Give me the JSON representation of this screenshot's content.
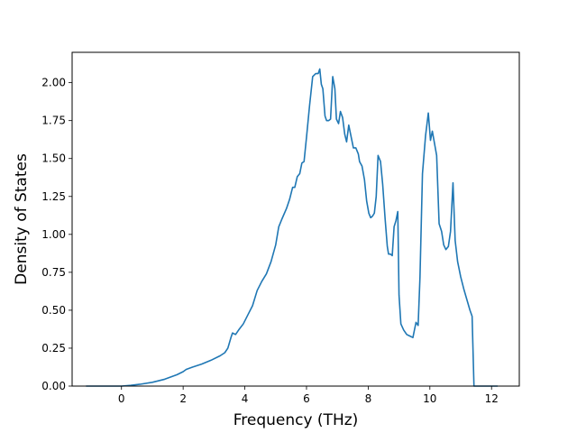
{
  "chart_data": {
    "type": "line",
    "title": "",
    "xlabel": "Frequency (THz)",
    "ylabel": "Density of States",
    "xlim": [
      -1.6,
      12.9
    ],
    "ylim": [
      0.0,
      2.2
    ],
    "xticks": [
      0,
      2,
      4,
      6,
      8,
      10,
      12
    ],
    "xtick_labels": [
      "0",
      "2",
      "4",
      "6",
      "8",
      "10",
      "12"
    ],
    "yticks": [
      0.0,
      0.25,
      0.5,
      0.75,
      1.0,
      1.25,
      1.5,
      1.75,
      2.0
    ],
    "ytick_labels": [
      "0.00",
      "0.25",
      "0.50",
      "0.75",
      "1.00",
      "1.25",
      "1.50",
      "1.75",
      "2.00"
    ],
    "grid": false,
    "legend": "none",
    "series": [
      {
        "color": "#1f77b4",
        "points": [
          [
            -1.15,
            0.0
          ],
          [
            0.0,
            0.0
          ],
          [
            0.3,
            0.005
          ],
          [
            0.6,
            0.012
          ],
          [
            1.0,
            0.025
          ],
          [
            1.4,
            0.045
          ],
          [
            1.8,
            0.075
          ],
          [
            2.0,
            0.095
          ],
          [
            2.1,
            0.11
          ],
          [
            2.3,
            0.125
          ],
          [
            2.6,
            0.145
          ],
          [
            2.9,
            0.17
          ],
          [
            3.2,
            0.2
          ],
          [
            3.35,
            0.22
          ],
          [
            3.45,
            0.25
          ],
          [
            3.55,
            0.32
          ],
          [
            3.6,
            0.35
          ],
          [
            3.7,
            0.34
          ],
          [
            3.8,
            0.37
          ],
          [
            3.95,
            0.41
          ],
          [
            4.1,
            0.47
          ],
          [
            4.25,
            0.53
          ],
          [
            4.4,
            0.63
          ],
          [
            4.55,
            0.69
          ],
          [
            4.7,
            0.74
          ],
          [
            4.85,
            0.82
          ],
          [
            5.0,
            0.93
          ],
          [
            5.1,
            1.05
          ],
          [
            5.2,
            1.1
          ],
          [
            5.35,
            1.17
          ],
          [
            5.45,
            1.23
          ],
          [
            5.55,
            1.31
          ],
          [
            5.62,
            1.31
          ],
          [
            5.7,
            1.38
          ],
          [
            5.78,
            1.4
          ],
          [
            5.85,
            1.47
          ],
          [
            5.92,
            1.48
          ],
          [
            6.0,
            1.64
          ],
          [
            6.1,
            1.85
          ],
          [
            6.2,
            2.04
          ],
          [
            6.3,
            2.06
          ],
          [
            6.38,
            2.06
          ],
          [
            6.43,
            2.09
          ],
          [
            6.48,
            1.99
          ],
          [
            6.53,
            1.96
          ],
          [
            6.6,
            1.78
          ],
          [
            6.65,
            1.75
          ],
          [
            6.72,
            1.75
          ],
          [
            6.78,
            1.76
          ],
          [
            6.85,
            2.04
          ],
          [
            6.92,
            1.96
          ],
          [
            6.97,
            1.76
          ],
          [
            7.04,
            1.73
          ],
          [
            7.1,
            1.81
          ],
          [
            7.17,
            1.77
          ],
          [
            7.24,
            1.66
          ],
          [
            7.3,
            1.61
          ],
          [
            7.37,
            1.72
          ],
          [
            7.45,
            1.64
          ],
          [
            7.52,
            1.57
          ],
          [
            7.6,
            1.57
          ],
          [
            7.68,
            1.53
          ],
          [
            7.72,
            1.48
          ],
          [
            7.8,
            1.45
          ],
          [
            7.88,
            1.36
          ],
          [
            7.95,
            1.22
          ],
          [
            8.02,
            1.14
          ],
          [
            8.08,
            1.11
          ],
          [
            8.14,
            1.12
          ],
          [
            8.2,
            1.14
          ],
          [
            8.26,
            1.25
          ],
          [
            8.32,
            1.52
          ],
          [
            8.4,
            1.48
          ],
          [
            8.47,
            1.33
          ],
          [
            8.55,
            1.1
          ],
          [
            8.62,
            0.92
          ],
          [
            8.66,
            0.87
          ],
          [
            8.72,
            0.87
          ],
          [
            8.78,
            0.86
          ],
          [
            8.84,
            1.05
          ],
          [
            8.9,
            1.09
          ],
          [
            8.96,
            1.15
          ],
          [
            9.0,
            0.6
          ],
          [
            9.06,
            0.41
          ],
          [
            9.15,
            0.37
          ],
          [
            9.25,
            0.34
          ],
          [
            9.35,
            0.33
          ],
          [
            9.45,
            0.32
          ],
          [
            9.5,
            0.37
          ],
          [
            9.55,
            0.42
          ],
          [
            9.62,
            0.4
          ],
          [
            9.68,
            0.72
          ],
          [
            9.76,
            1.4
          ],
          [
            9.86,
            1.65
          ],
          [
            9.95,
            1.8
          ],
          [
            10.02,
            1.62
          ],
          [
            10.08,
            1.68
          ],
          [
            10.15,
            1.6
          ],
          [
            10.22,
            1.52
          ],
          [
            10.3,
            1.07
          ],
          [
            10.38,
            1.02
          ],
          [
            10.45,
            0.93
          ],
          [
            10.52,
            0.9
          ],
          [
            10.6,
            0.92
          ],
          [
            10.67,
            1.02
          ],
          [
            10.75,
            1.34
          ],
          [
            10.82,
            0.96
          ],
          [
            10.9,
            0.82
          ],
          [
            11.0,
            0.72
          ],
          [
            11.1,
            0.64
          ],
          [
            11.2,
            0.57
          ],
          [
            11.3,
            0.5
          ],
          [
            11.37,
            0.46
          ],
          [
            11.43,
            0.0
          ],
          [
            12.2,
            0.0
          ]
        ]
      }
    ]
  }
}
